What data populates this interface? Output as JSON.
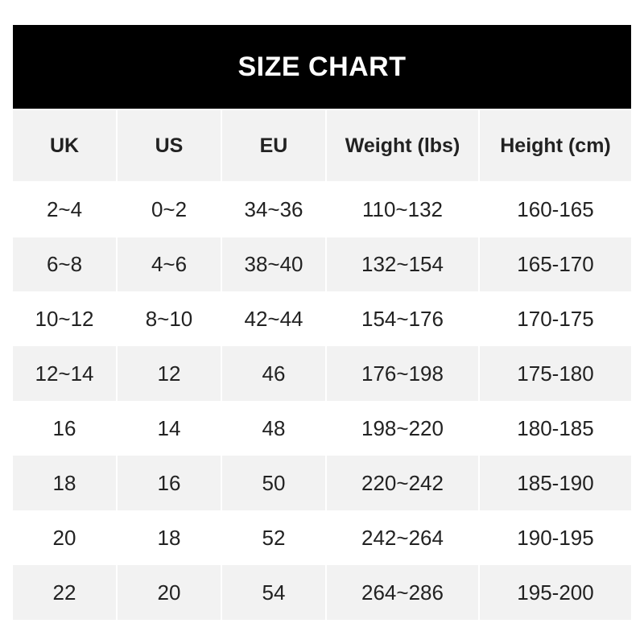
{
  "title": "SIZE CHART",
  "columns": [
    "UK",
    "US",
    "EU",
    "Weight (lbs)",
    "Height (cm)"
  ],
  "rows": [
    [
      "2~4",
      "0~2",
      "34~36",
      "110~132",
      "160-165"
    ],
    [
      "6~8",
      "4~6",
      "38~40",
      "132~154",
      "165-170"
    ],
    [
      "10~12",
      "8~10",
      "42~44",
      "154~176",
      "170-175"
    ],
    [
      "12~14",
      "12",
      "46",
      "176~198",
      "175-180"
    ],
    [
      "16",
      "14",
      "48",
      "198~220",
      "180-185"
    ],
    [
      "18",
      "16",
      "50",
      "220~242",
      "185-190"
    ],
    [
      "20",
      "18",
      "52",
      "242~264",
      "190-195"
    ],
    [
      "22",
      "20",
      "54",
      "264~286",
      "195-200"
    ]
  ],
  "colors": {
    "header_bg": "#000000",
    "stripe": "#f2f2f2",
    "text": "#222222"
  }
}
